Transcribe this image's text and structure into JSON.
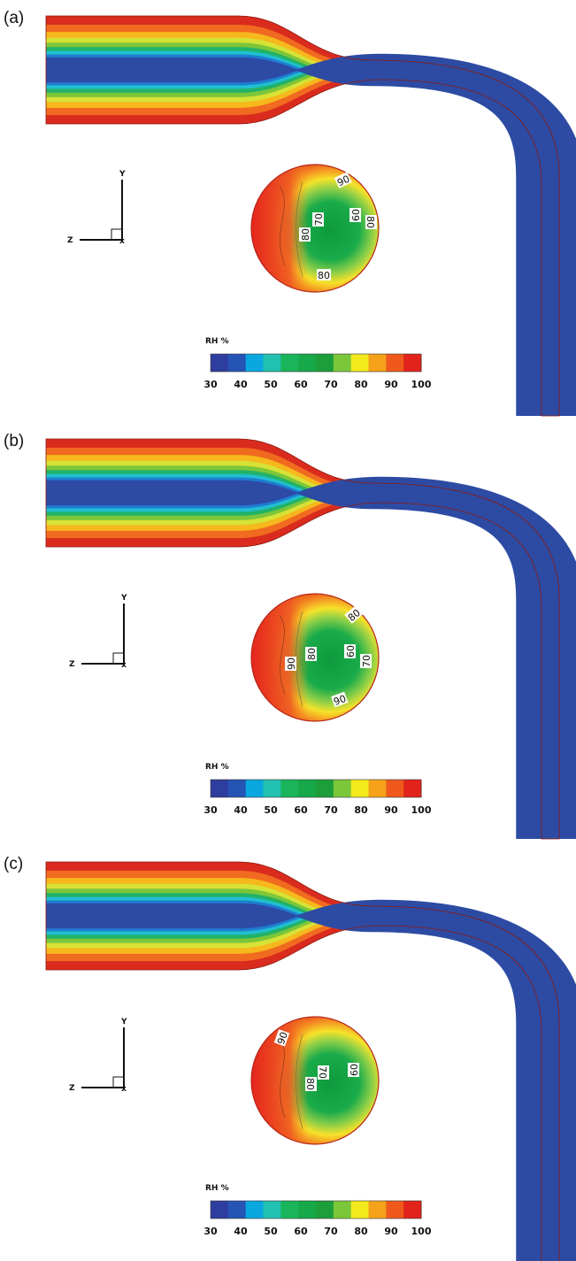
{
  "colorbar": {
    "title": "RH   %",
    "ticks": [
      "30",
      "40",
      "50",
      "60",
      "70",
      "80",
      "90",
      "100"
    ],
    "colors": [
      "#2d3e9e",
      "#2554b5",
      "#0aa8e0",
      "#22c0b0",
      "#1ab55a",
      "#17a84a",
      "#1c9e3a",
      "#7cc63a",
      "#f2ea1c",
      "#f5a21a",
      "#ef5a1c",
      "#e2231b"
    ]
  },
  "axes": {
    "y": "Y",
    "z": "Z",
    "x": "x"
  },
  "panels": [
    {
      "label": "(a)",
      "contour_labels": [
        {
          "text": "90",
          "rot": -25
        },
        {
          "text": "70",
          "rot": -90
        },
        {
          "text": "80",
          "rot": -90
        },
        {
          "text": "60",
          "rot": -90
        },
        {
          "text": "80",
          "rot": 90
        },
        {
          "text": "80",
          "rot": 0
        }
      ]
    },
    {
      "label": "(b)",
      "contour_labels": [
        {
          "text": "80",
          "rot": -40
        },
        {
          "text": "90",
          "rot": -90
        },
        {
          "text": "80",
          "rot": -90
        },
        {
          "text": "60",
          "rot": -90
        },
        {
          "text": "70",
          "rot": -90
        },
        {
          "text": "90",
          "rot": -20
        }
      ]
    },
    {
      "label": "(c)",
      "contour_labels": [
        {
          "text": "90",
          "rot": -70
        },
        {
          "text": "70",
          "rot": 90
        },
        {
          "text": "80",
          "rot": 90
        },
        {
          "text": "60",
          "rot": -90
        }
      ]
    }
  ]
}
